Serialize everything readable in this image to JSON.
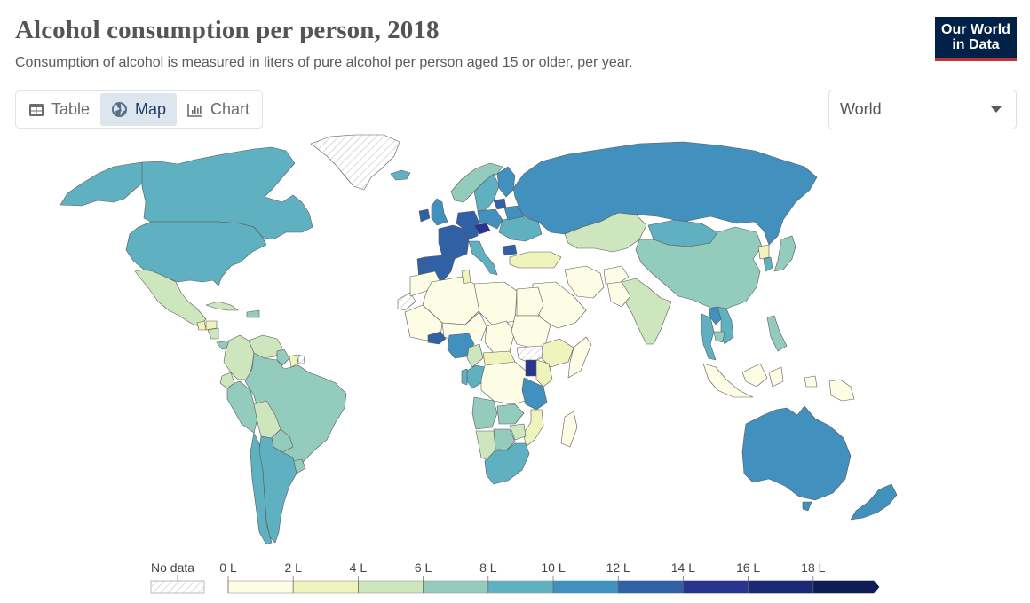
{
  "header": {
    "title": "Alcohol consumption per person, 2018",
    "subtitle": "Consumption of alcohol is measured in liters of pure alcohol per person aged 15 or older, per year.",
    "logo_line1": "Our World",
    "logo_line2": "in Data"
  },
  "tabs": [
    {
      "label": "Table",
      "icon": "table-icon",
      "active": false
    },
    {
      "label": "Map",
      "icon": "globe-icon",
      "active": true
    },
    {
      "label": "Chart",
      "icon": "bar-chart-icon",
      "active": false
    }
  ],
  "region_select": {
    "value": "World",
    "icon": "caret-down-icon"
  },
  "legend": {
    "no_data_label": "No data",
    "tick_labels": [
      "0 L",
      "2 L",
      "4 L",
      "6 L",
      "8 L",
      "10 L",
      "12 L",
      "14 L",
      "16 L",
      "18 L"
    ],
    "bins": [
      {
        "min": 0,
        "max": 2,
        "color": "#fcfde4"
      },
      {
        "min": 2,
        "max": 4,
        "color": "#eef4bb"
      },
      {
        "min": 4,
        "max": 6,
        "color": "#cde6bd"
      },
      {
        "min": 6,
        "max": 8,
        "color": "#93cbbd"
      },
      {
        "min": 8,
        "max": 10,
        "color": "#5fb1c1"
      },
      {
        "min": 10,
        "max": 12,
        "color": "#4190bd"
      },
      {
        "min": 12,
        "max": 14,
        "color": "#3060a6"
      },
      {
        "min": 14,
        "max": 16,
        "color": "#28348f"
      },
      {
        "min": 16,
        "max": 18,
        "color": "#1b2a72"
      },
      {
        "min": 18,
        "max": null,
        "color": "#0f1d55"
      }
    ],
    "no_data_color": "#ffffff"
  },
  "chart_data": {
    "type": "choropleth",
    "title": "Alcohol consumption per person, 2018",
    "unit": "liters of pure alcohol per person aged 15+ per year",
    "scale": [
      0,
      2,
      4,
      6,
      8,
      10,
      12,
      14,
      16,
      18
    ],
    "regions": [
      {
        "name": "Alaska (United States)",
        "bin": 4
      },
      {
        "name": "Canada",
        "bin": 4
      },
      {
        "name": "United States",
        "bin": 4
      },
      {
        "name": "Greenland",
        "bin": null
      },
      {
        "name": "Iceland",
        "bin": 4
      },
      {
        "name": "Mexico",
        "bin": 2
      },
      {
        "name": "Guatemala",
        "bin": 1
      },
      {
        "name": "Honduras",
        "bin": 1
      },
      {
        "name": "Nicaragua",
        "bin": 2
      },
      {
        "name": "Cuba",
        "bin": 2
      },
      {
        "name": "Dominican Republic",
        "bin": 3
      },
      {
        "name": "Panama",
        "bin": 3
      },
      {
        "name": "Colombia",
        "bin": 2
      },
      {
        "name": "Venezuela",
        "bin": 2
      },
      {
        "name": "Guyana",
        "bin": 3
      },
      {
        "name": "Suriname",
        "bin": 1
      },
      {
        "name": "French Guiana",
        "bin": null
      },
      {
        "name": "Ecuador",
        "bin": 2
      },
      {
        "name": "Peru",
        "bin": 3
      },
      {
        "name": "Brazil",
        "bin": 3
      },
      {
        "name": "Bolivia",
        "bin": 2
      },
      {
        "name": "Paraguay",
        "bin": 3
      },
      {
        "name": "Uruguay",
        "bin": 3
      },
      {
        "name": "Chile",
        "bin": 4
      },
      {
        "name": "Argentina",
        "bin": 4
      },
      {
        "name": "Norway",
        "bin": 3
      },
      {
        "name": "Sweden",
        "bin": 4
      },
      {
        "name": "Finland",
        "bin": 5
      },
      {
        "name": "United Kingdom",
        "bin": 5
      },
      {
        "name": "Ireland",
        "bin": 6
      },
      {
        "name": "France",
        "bin": 6
      },
      {
        "name": "Spain",
        "bin": 6
      },
      {
        "name": "Portugal",
        "bin": 6
      },
      {
        "name": "Germany",
        "bin": 6
      },
      {
        "name": "Czechia",
        "bin": 7
      },
      {
        "name": "Poland",
        "bin": 5
      },
      {
        "name": "Lithuania",
        "bin": 6
      },
      {
        "name": "Italy",
        "bin": 4
      },
      {
        "name": "Bulgaria",
        "bin": 6
      },
      {
        "name": "Ukraine",
        "bin": 4
      },
      {
        "name": "Belarus",
        "bin": 5
      },
      {
        "name": "Russia",
        "bin": 5
      },
      {
        "name": "Turkey",
        "bin": 1
      },
      {
        "name": "Kazakhstan",
        "bin": 2
      },
      {
        "name": "Mongolia",
        "bin": 4
      },
      {
        "name": "China",
        "bin": 3
      },
      {
        "name": "Japan",
        "bin": 3
      },
      {
        "name": "South Korea",
        "bin": 4
      },
      {
        "name": "North Korea",
        "bin": 1
      },
      {
        "name": "India",
        "bin": 2
      },
      {
        "name": "Iran",
        "bin": 0
      },
      {
        "name": "Saudi Arabia",
        "bin": 0
      },
      {
        "name": "Afghanistan",
        "bin": 0
      },
      {
        "name": "Pakistan",
        "bin": 0
      },
      {
        "name": "Laos",
        "bin": 5
      },
      {
        "name": "Thailand",
        "bin": 4
      },
      {
        "name": "Vietnam",
        "bin": 4
      },
      {
        "name": "Cambodia",
        "bin": 3
      },
      {
        "name": "Philippines",
        "bin": 3
      },
      {
        "name": "Indonesia",
        "bin": 0
      },
      {
        "name": "Papua New Guinea",
        "bin": 0
      },
      {
        "name": "Australia",
        "bin": 5
      },
      {
        "name": "New Zealand",
        "bin": 5
      },
      {
        "name": "Western Sahara",
        "bin": null
      },
      {
        "name": "Morocco",
        "bin": 0
      },
      {
        "name": "Algeria",
        "bin": 0
      },
      {
        "name": "Tunisia",
        "bin": 1
      },
      {
        "name": "Libya",
        "bin": 0
      },
      {
        "name": "Egypt",
        "bin": 0
      },
      {
        "name": "Mali",
        "bin": 0
      },
      {
        "name": "Niger",
        "bin": 0
      },
      {
        "name": "Chad",
        "bin": 0
      },
      {
        "name": "Sudan",
        "bin": 0
      },
      {
        "name": "South Sudan",
        "bin": null
      },
      {
        "name": "Ethiopia",
        "bin": 1
      },
      {
        "name": "Burkina Faso",
        "bin": 6
      },
      {
        "name": "Nigeria",
        "bin": 5
      },
      {
        "name": "Cameroon",
        "bin": 2
      },
      {
        "name": "Central African Republic",
        "bin": 1
      },
      {
        "name": "Congo",
        "bin": 4
      },
      {
        "name": "Gabon",
        "bin": 4
      },
      {
        "name": "DR Congo",
        "bin": 0
      },
      {
        "name": "Uganda",
        "bin": 7
      },
      {
        "name": "Kenya",
        "bin": 1
      },
      {
        "name": "Tanzania",
        "bin": 5
      },
      {
        "name": "Angola",
        "bin": 3
      },
      {
        "name": "Zambia",
        "bin": 3
      },
      {
        "name": "Mozambique",
        "bin": 1
      },
      {
        "name": "Zimbabwe",
        "bin": 2
      },
      {
        "name": "Namibia",
        "bin": 2
      },
      {
        "name": "Botswana",
        "bin": 3
      },
      {
        "name": "South Africa",
        "bin": 4
      },
      {
        "name": "Madagascar",
        "bin": 0
      },
      {
        "name": "Somalia",
        "bin": 0
      }
    ]
  }
}
